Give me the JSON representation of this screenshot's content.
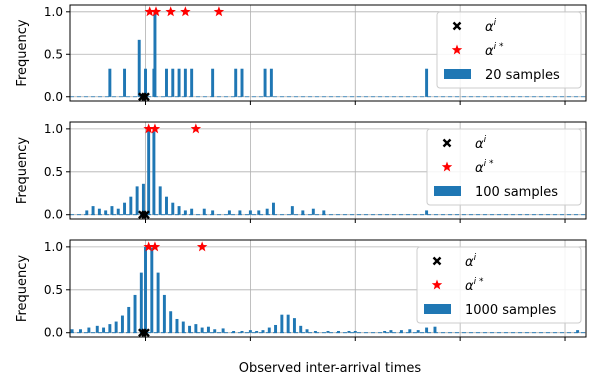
{
  "figure": {
    "xlabel": "Observed inter-arrival times",
    "ylabel": "Frequency"
  },
  "colors": {
    "bar": "#1f77b4",
    "grid": "#b0b0b0",
    "true_marker": "#000000",
    "estimated_marker": "#ff0000",
    "axis": "#000000"
  },
  "icons": {
    "true_marker": "x-marker-icon",
    "estimated_marker": "star-icon",
    "series": "bar-patch-icon"
  },
  "chart_data": [
    {
      "type": "bar",
      "ylabel": "Frequency",
      "xlabel": "",
      "xlim": [
        -0.36,
        2.1
      ],
      "ylim": [
        -0.05,
        1.08
      ],
      "yticks": [
        0.0,
        0.5,
        1.0
      ],
      "ytick_labels": [
        "0.0",
        "0.5",
        "1.0"
      ],
      "xticks": [
        0.0,
        0.5,
        1.0,
        1.5,
        2.0
      ],
      "xtick_labels": [
        "",
        "",
        "",
        "",
        ""
      ],
      "grid": true,
      "legend_position": "upper right",
      "legend": {
        "true_label_base": "α",
        "true_label_sup": "i",
        "estimated_label_base": "α",
        "estimated_label_sup": "i *",
        "bar_label": "20 samples"
      },
      "bars": [
        [
          -0.17,
          0.33
        ],
        [
          -0.1,
          0.33
        ],
        [
          -0.03,
          0.67
        ],
        [
          0.04,
          0.33
        ],
        [
          0.0,
          0.33
        ],
        [
          0.045,
          1.0
        ],
        [
          0.1,
          0.33
        ],
        [
          0.13,
          0.33
        ],
        [
          0.16,
          0.33
        ],
        [
          0.19,
          0.33
        ],
        [
          0.22,
          0.33
        ],
        [
          0.32,
          0.33
        ],
        [
          0.43,
          0.33
        ],
        [
          0.46,
          0.33
        ],
        [
          0.57,
          0.33
        ],
        [
          0.6,
          0.33
        ],
        [
          1.34,
          0.33
        ]
      ],
      "true_points": [
        [
          -0.015,
          0.0
        ],
        [
          0.0,
          0.0
        ]
      ],
      "estimated_points": [
        [
          0.02,
          1.0
        ],
        [
          0.05,
          1.0
        ],
        [
          0.12,
          1.0
        ],
        [
          0.19,
          1.0
        ],
        [
          0.35,
          1.0
        ]
      ]
    },
    {
      "type": "bar",
      "ylabel": "Frequency",
      "xlabel": "",
      "xlim": [
        -0.36,
        2.1
      ],
      "ylim": [
        -0.05,
        1.08
      ],
      "yticks": [
        0.0,
        0.5,
        1.0
      ],
      "ytick_labels": [
        "0.0",
        "0.5",
        "1.0"
      ],
      "xticks": [
        0.0,
        0.5,
        1.0,
        1.5,
        2.0
      ],
      "xtick_labels": [
        "",
        "",
        "",
        "",
        ""
      ],
      "grid": true,
      "legend_position": "upper right",
      "legend": {
        "true_label_base": "α",
        "true_label_sup": "i",
        "estimated_label_base": "α",
        "estimated_label_sup": "i *",
        "bar_label": "100 samples"
      },
      "bars": [
        [
          -0.28,
          0.05
        ],
        [
          -0.25,
          0.1
        ],
        [
          -0.22,
          0.07
        ],
        [
          -0.19,
          0.05
        ],
        [
          -0.16,
          0.1
        ],
        [
          -0.13,
          0.07
        ],
        [
          -0.1,
          0.14
        ],
        [
          -0.07,
          0.21
        ],
        [
          -0.04,
          0.33
        ],
        [
          -0.01,
          0.36
        ],
        [
          0.015,
          1.0
        ],
        [
          0.04,
          0.97
        ],
        [
          0.07,
          0.33
        ],
        [
          0.1,
          0.21
        ],
        [
          0.13,
          0.14
        ],
        [
          0.16,
          0.1
        ],
        [
          0.19,
          0.05
        ],
        [
          0.22,
          0.07
        ],
        [
          0.28,
          0.07
        ],
        [
          0.32,
          0.05
        ],
        [
          0.4,
          0.05
        ],
        [
          0.45,
          0.05
        ],
        [
          0.5,
          0.05
        ],
        [
          0.54,
          0.05
        ],
        [
          0.58,
          0.07
        ],
        [
          0.61,
          0.14
        ],
        [
          0.7,
          0.1
        ],
        [
          0.75,
          0.05
        ],
        [
          0.8,
          0.07
        ],
        [
          0.85,
          0.05
        ],
        [
          1.34,
          0.05
        ]
      ],
      "true_points": [
        [
          -0.015,
          0.0
        ],
        [
          0.0,
          0.0
        ]
      ],
      "estimated_points": [
        [
          0.015,
          1.0
        ],
        [
          0.045,
          1.0
        ],
        [
          0.24,
          1.0
        ]
      ]
    },
    {
      "type": "bar",
      "ylabel": "Frequency",
      "xlabel": "",
      "xlim": [
        -0.36,
        2.1
      ],
      "ylim": [
        -0.05,
        1.08
      ],
      "yticks": [
        0.0,
        0.5,
        1.0
      ],
      "ytick_labels": [
        "0.0",
        "0.5",
        "1.0"
      ],
      "xticks": [
        0.0,
        0.5,
        1.0,
        1.5,
        2.0
      ],
      "xtick_labels": [
        "",
        "",
        "",
        "",
        ""
      ],
      "grid": true,
      "legend_position": "upper right",
      "legend": {
        "true_label_base": "α",
        "true_label_sup": "i",
        "estimated_label_base": "α",
        "estimated_label_sup": "i *",
        "bar_label": "1000 samples"
      },
      "bars": [
        [
          -0.35,
          0.04
        ],
        [
          -0.31,
          0.04
        ],
        [
          -0.27,
          0.06
        ],
        [
          -0.23,
          0.08
        ],
        [
          -0.2,
          0.06
        ],
        [
          -0.17,
          0.1
        ],
        [
          -0.14,
          0.13
        ],
        [
          -0.11,
          0.2
        ],
        [
          -0.08,
          0.3
        ],
        [
          -0.05,
          0.44
        ],
        [
          -0.02,
          0.7
        ],
        [
          0.0,
          1.0
        ],
        [
          0.03,
          0.99
        ],
        [
          0.06,
          0.7
        ],
        [
          0.09,
          0.44
        ],
        [
          0.12,
          0.25
        ],
        [
          0.15,
          0.16
        ],
        [
          0.18,
          0.13
        ],
        [
          0.21,
          0.08
        ],
        [
          0.24,
          0.1
        ],
        [
          0.27,
          0.06
        ],
        [
          0.3,
          0.07
        ],
        [
          0.33,
          0.04
        ],
        [
          0.37,
          0.05
        ],
        [
          0.42,
          0.02
        ],
        [
          0.46,
          0.02
        ],
        [
          0.5,
          0.03
        ],
        [
          0.53,
          0.02
        ],
        [
          0.56,
          0.03
        ],
        [
          0.59,
          0.06
        ],
        [
          0.62,
          0.09
        ],
        [
          0.65,
          0.21
        ],
        [
          0.68,
          0.21
        ],
        [
          0.71,
          0.17
        ],
        [
          0.74,
          0.08
        ],
        [
          0.77,
          0.04
        ],
        [
          0.81,
          0.02
        ],
        [
          0.87,
          0.02
        ],
        [
          0.92,
          0.02
        ],
        [
          0.97,
          0.02
        ],
        [
          1.0,
          0.02
        ],
        [
          1.14,
          0.02
        ],
        [
          1.17,
          0.03
        ],
        [
          1.22,
          0.03
        ],
        [
          1.26,
          0.04
        ],
        [
          1.3,
          0.03
        ],
        [
          1.34,
          0.06
        ],
        [
          1.38,
          0.07
        ],
        [
          2.06,
          0.03
        ]
      ],
      "true_points": [
        [
          -0.015,
          0.0
        ],
        [
          0.0,
          0.0
        ]
      ],
      "estimated_points": [
        [
          0.015,
          1.0
        ],
        [
          0.045,
          1.0
        ],
        [
          0.27,
          1.0
        ]
      ]
    }
  ]
}
